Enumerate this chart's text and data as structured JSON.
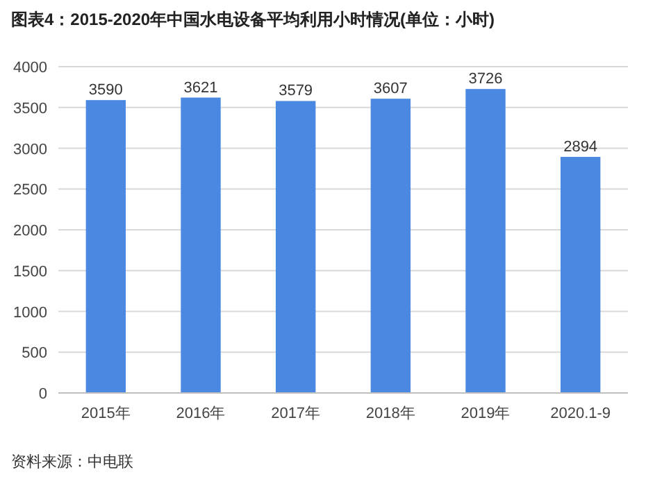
{
  "chart_data": {
    "type": "bar",
    "title": "图表4：2015-2020年中国水电设备平均利用小时情况(单位：小时)",
    "categories": [
      "2015年",
      "2016年",
      "2017年",
      "2018年",
      "2019年",
      "2020.1-9"
    ],
    "values": [
      3590,
      3621,
      3579,
      3607,
      3726,
      2894
    ],
    "color": "#4a88e2",
    "ylim": [
      0,
      4000
    ],
    "yticks": [
      0,
      500,
      1000,
      1500,
      2000,
      2500,
      3000,
      3500,
      4000
    ],
    "grid": "y",
    "data_labels": true,
    "annotations": [
      "资料来源：中电联"
    ]
  }
}
